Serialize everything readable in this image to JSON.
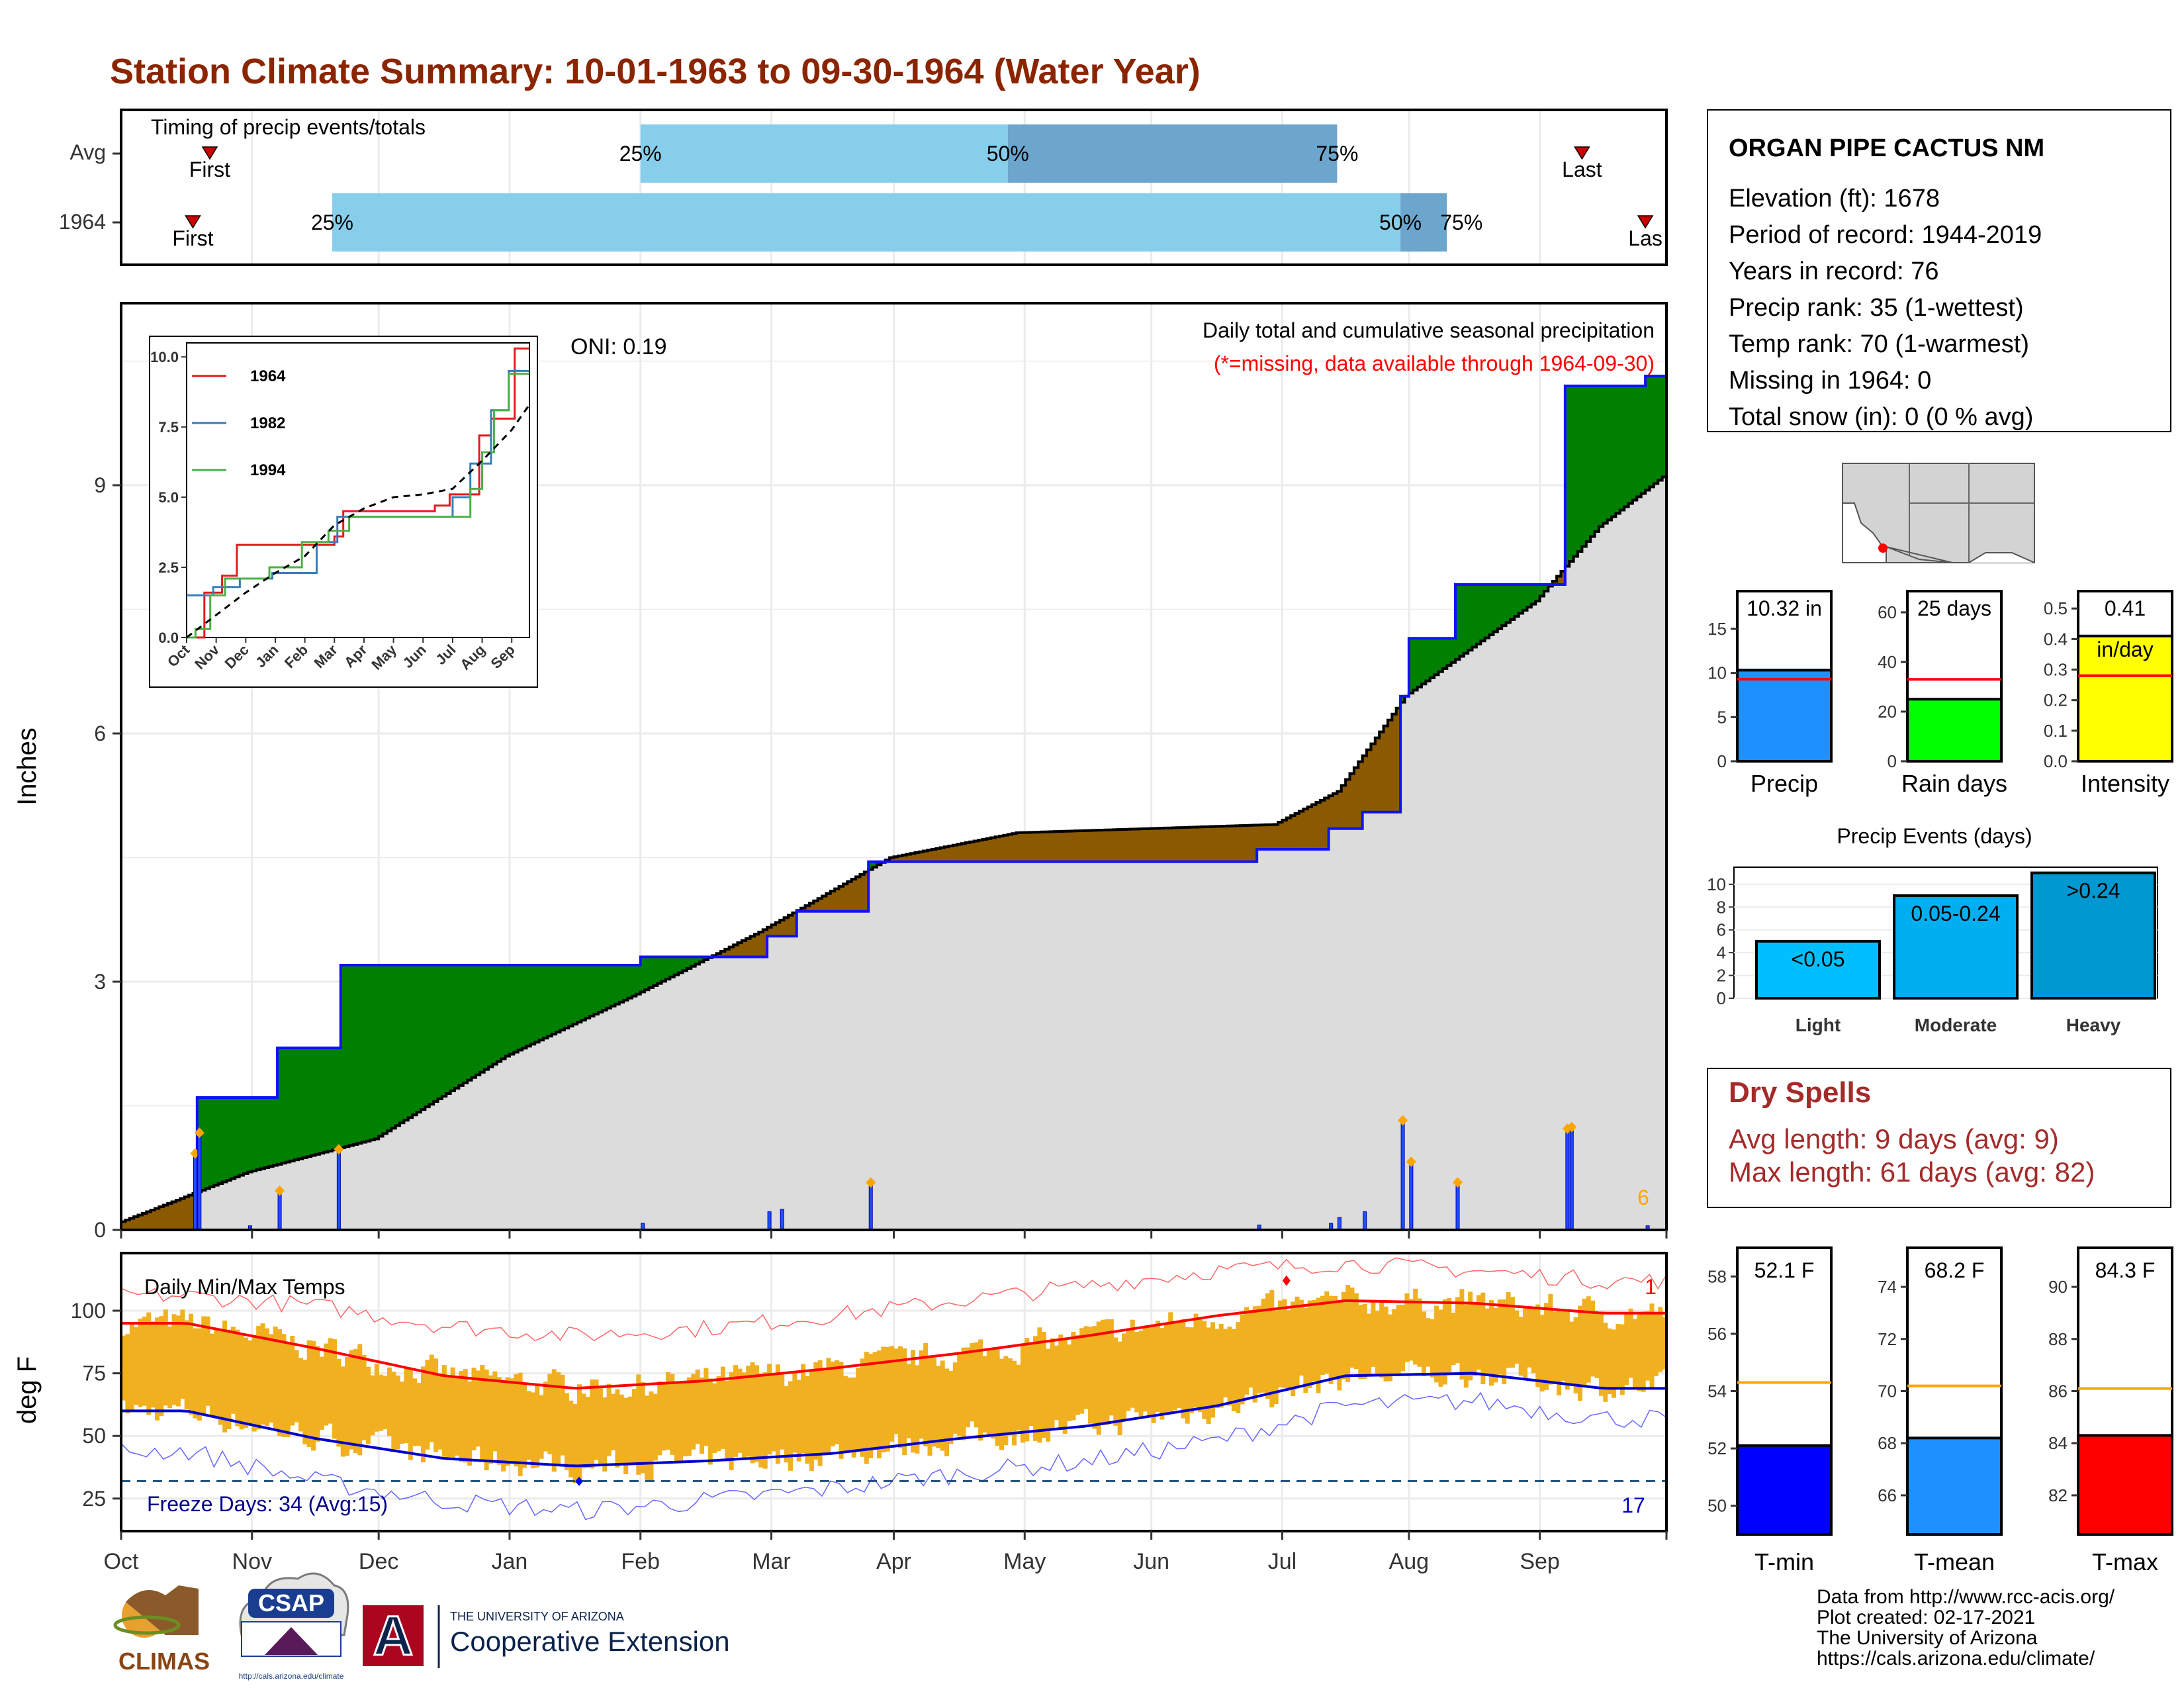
{
  "title": "Station Climate Summary: 10-01-1963 to 09-30-1964 (Water Year)",
  "colors": {
    "title": "#8b2500",
    "precip_bar": "#1f4fff",
    "above": "#008000",
    "below": "#8b5a00",
    "normal_fill": "#dcdcdc",
    "tmax": "#ff0000",
    "tmin": "#0000cd",
    "temp_bar": "#f0b020",
    "light_blue": "#87ceeb",
    "mid_blue": "#6ca6cd"
  },
  "timing": {
    "title": "Timing of precip events/totals",
    "rows": [
      {
        "label": "Avg",
        "first": "First",
        "last": "Last",
        "p25": "25%",
        "p50": "50%",
        "p75": "75%",
        "first_date": "1963-10-22",
        "last_date": "1964-09-11",
        "q25_date": "1964-02-01",
        "q50_date": "1964-04-28",
        "q75_date": "1964-07-15"
      },
      {
        "label": "1964",
        "first": "First",
        "last": "Las",
        "p25": "25%",
        "p50": "50%",
        "p75": "75%",
        "first_date": "1963-10-18",
        "last_date": "1964-09-26",
        "q25_date": "1963-11-20",
        "q50_date": "1964-07-30",
        "q75_date": "1964-08-10"
      }
    ]
  },
  "precip_panel": {
    "ylabel": "Inches",
    "yticks": [
      "0",
      "3",
      "6",
      "9"
    ],
    "oni": "ONI: 0.19",
    "subtitle": "Daily total and cumulative seasonal precipitation",
    "missing_note": "(*=missing, data available through 1964-09-30)",
    "count_label": "6",
    "months": [
      "Oct",
      "Nov",
      "Dec",
      "Jan",
      "Feb",
      "Mar",
      "Apr",
      "May",
      "Jun",
      "Jul",
      "Aug",
      "Sep"
    ]
  },
  "inset": {
    "yticks": [
      "0.0",
      "2.5",
      "5.0",
      "7.5",
      "10.0"
    ],
    "months": [
      "Oct",
      "Nov",
      "Dec",
      "Jan",
      "Feb",
      "Mar",
      "Apr",
      "May",
      "Jun",
      "Jul",
      "Aug",
      "Sep"
    ],
    "legend": [
      {
        "name": "1964",
        "color": "#e41a1c"
      },
      {
        "name": "1982",
        "color": "#377eb8"
      },
      {
        "name": "1994",
        "color": "#4daf4a"
      }
    ]
  },
  "temp_panel": {
    "ylabel": "deg F",
    "title": "Daily Min/Max Temps",
    "yticks": [
      "25",
      "50",
      "75",
      "100"
    ],
    "freeze": "Freeze Days: 34 (Avg:15)",
    "hot_count": "1",
    "freeze_count": "17",
    "months": [
      "Oct",
      "Nov",
      "Dec",
      "Jan",
      "Feb",
      "Mar",
      "Apr",
      "May",
      "Jun",
      "Jul",
      "Aug",
      "Sep"
    ]
  },
  "station": {
    "name": "ORGAN PIPE CACTUS NM",
    "lines": [
      "Elevation (ft): 1678",
      "Period of record: 1944-2019",
      "Years in record: 76",
      "Precip rank: 35 (1-wettest)",
      "Temp rank: 70 (1-warmest)",
      "Missing in 1964: 0",
      "Total snow (in): 0 (0 % avg)"
    ]
  },
  "summary_bars": [
    {
      "label": "Precip",
      "value_text": "10.32 in",
      "value": 10.32,
      "avg": 9.3,
      "max": 18,
      "yticks": [
        "0",
        "5",
        "10",
        "15"
      ],
      "color": "#1e90ff"
    },
    {
      "label": "Rain days",
      "value_text": "25 days",
      "value": 25,
      "avg": 33,
      "max": 64,
      "yticks": [
        "0",
        "20",
        "40",
        "60"
      ],
      "color": "#00ff00"
    },
    {
      "label": "Intensity",
      "value_text": "0.41",
      "unit_text": "in/day",
      "value": 0.41,
      "avg": 0.28,
      "max": 0.52,
      "yticks": [
        "0.0",
        "0.1",
        "0.2",
        "0.3",
        "0.4",
        "0.5"
      ],
      "color": "#ffff00"
    }
  ],
  "events": {
    "title": "Precip Events (days)",
    "yticks": [
      "0",
      "2",
      "4",
      "6",
      "8",
      "10"
    ],
    "bars": [
      {
        "label": "Light",
        "range": "<0.05",
        "value": 5,
        "color": "#00bfff"
      },
      {
        "label": "Moderate",
        "range": "0.05-0.24",
        "value": 9,
        "color": "#00aff0"
      },
      {
        "label": "Heavy",
        "range": ">0.24",
        "value": 11,
        "color": "#0098d0"
      }
    ]
  },
  "dry_spells": {
    "title": "Dry Spells",
    "avg": "Avg length: 9 days (avg: 9)",
    "max": "Max length: 61 days (avg: 82)"
  },
  "temp_bars": [
    {
      "label": "T-min",
      "value_text": "52.1 F",
      "value": 52.1,
      "avg": 54.3,
      "min": 49,
      "max": 59,
      "yticks": [
        "50",
        "52",
        "54",
        "56",
        "58"
      ],
      "color": "#0000ff"
    },
    {
      "label": "T-mean",
      "value_text": "68.2 F",
      "value": 68.2,
      "avg": 70.2,
      "min": 64.5,
      "max": 75.5,
      "yticks": [
        "66",
        "68",
        "70",
        "72",
        "74"
      ],
      "color": "#1e90ff"
    },
    {
      "label": "T-max",
      "value_text": "84.3 F",
      "value": 84.3,
      "avg": 86.1,
      "min": 80.5,
      "max": 91.5,
      "yticks": [
        "82",
        "84",
        "86",
        "88",
        "90"
      ],
      "color": "#ff0000"
    }
  ],
  "footer": {
    "lines": [
      "Data from http://www.rcc-acis.org/",
      "Plot created: 02-17-2021",
      "The University of Arizona",
      "https://cals.arizona.edu/climate/"
    ],
    "climas": "CLIMAS",
    "csap": "CSAP",
    "csap_url": "http://cals.arizona.edu/climate",
    "ua_small": "THE UNIVERSITY OF ARIZONA",
    "ua_big": "Cooperative Extension",
    "ua_letter": "A"
  },
  "chart_data": [
    {
      "type": "area",
      "title": "Daily total and cumulative seasonal precipitation",
      "ylabel": "Inches",
      "ylim": [
        0,
        11.2
      ],
      "xlim": [
        "1963-10-01",
        "1964-09-30"
      ],
      "series": [
        {
          "name": "1964",
          "x": [
            "1963-10-01",
            "1963-10-18",
            "1963-10-19",
            "1963-11-01",
            "1963-11-07",
            "1963-11-21",
            "1963-11-22",
            "1964-01-31",
            "1964-02-01",
            "1964-03-01",
            "1964-03-02",
            "1964-03-08",
            "1964-03-09",
            "1964-03-25",
            "1964-03-26",
            "1964-06-25",
            "1964-06-26",
            "1964-07-12",
            "1964-07-13",
            "1964-07-20",
            "1964-07-21",
            "1964-07-29",
            "1964-07-30",
            "1964-07-31",
            "1964-08-01",
            "1964-08-11",
            "1964-08-12",
            "1964-09-06",
            "1964-09-07",
            "1964-09-26",
            "1964-09-30"
          ],
          "values": [
            0,
            0,
            1.6,
            1.6,
            2.2,
            2.2,
            3.2,
            3.2,
            3.3,
            3.3,
            3.55,
            3.55,
            3.85,
            3.85,
            4.45,
            4.45,
            4.6,
            4.6,
            4.85,
            4.85,
            5.05,
            5.05,
            6.45,
            6.45,
            7.15,
            7.15,
            7.8,
            7.8,
            10.2,
            10.32,
            10.32
          ]
        },
        {
          "name": "Avg",
          "x": [
            "1963-10-01",
            "1963-10-31",
            "1963-11-30",
            "1963-12-31",
            "1964-01-31",
            "1964-02-29",
            "1964-03-31",
            "1964-04-30",
            "1964-05-31",
            "1964-06-30",
            "1964-07-15",
            "1964-07-31",
            "1964-08-31",
            "1964-09-15",
            "1964-09-30"
          ],
          "values": [
            0.1,
            0.7,
            1.1,
            2.1,
            2.85,
            3.6,
            4.5,
            4.8,
            4.85,
            4.9,
            5.3,
            6.45,
            7.6,
            8.5,
            9.1
          ]
        }
      ],
      "daily": {
        "x": [
          "1963-10-18",
          "1963-10-19",
          "1963-10-31",
          "1963-11-07",
          "1963-11-21",
          "1964-02-01",
          "1964-03-02",
          "1964-03-05",
          "1964-03-26",
          "1964-06-26",
          "1964-07-13",
          "1964-07-15",
          "1964-07-21",
          "1964-07-30",
          "1964-08-01",
          "1964-08-12",
          "1964-09-07",
          "1964-09-08",
          "1964-09-26"
        ],
        "values": [
          0.9,
          1.15,
          0.05,
          0.45,
          0.95,
          0.08,
          0.22,
          0.25,
          0.55,
          0.06,
          0.08,
          0.15,
          0.22,
          1.3,
          0.8,
          0.55,
          1.2,
          1.22,
          0.05
        ]
      }
    },
    {
      "type": "line",
      "title": "Daily Min/Max Temps",
      "ylabel": "deg F",
      "ylim": [
        12,
        123
      ],
      "x": [
        "Oct",
        "Nov",
        "Dec",
        "Jan",
        "Feb",
        "Mar",
        "Apr",
        "May",
        "Jun",
        "Jul",
        "Aug",
        "Sep"
      ],
      "series": [
        {
          "name": "Avg max",
          "values": [
            95,
            85,
            74,
            69,
            72,
            77,
            83,
            90,
            98,
            104,
            103,
            99
          ]
        },
        {
          "name": "Avg min",
          "values": [
            60,
            49,
            41,
            38,
            40,
            43,
            49,
            54,
            62,
            74,
            75,
            69
          ]
        },
        {
          "name": "Record max",
          "values": [
            106,
            102,
            94,
            90,
            93,
            98,
            104,
            110,
            116,
            119,
            116,
            112
          ]
        },
        {
          "name": "Record min",
          "values": [
            44,
            32,
            24,
            20,
            24,
            29,
            35,
            40,
            48,
            62,
            64,
            57
          ]
        }
      ],
      "freeze_threshold": 32
    }
  ]
}
